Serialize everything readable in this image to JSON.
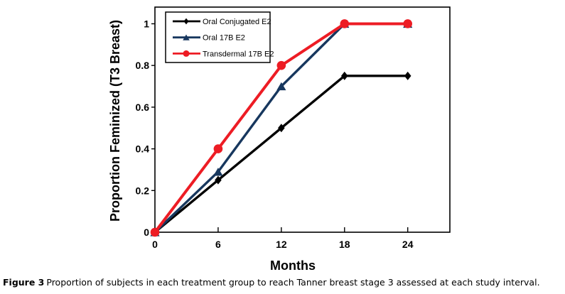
{
  "figure": {
    "caption_label": "Figure 3",
    "caption_text": "Proportion of subjects in each treatment group to reach Tanner breast stage 3 assessed at each study interval."
  },
  "chart_data": {
    "type": "line",
    "title": "",
    "xlabel": "Months",
    "ylabel": "Proportion Feminized (T3 Breast)",
    "x": [
      0,
      6,
      12,
      18,
      24
    ],
    "xticks": [
      0,
      6,
      12,
      18,
      24
    ],
    "xtick_labels": [
      "0",
      "6",
      "12",
      "18",
      "24"
    ],
    "yticks": [
      0,
      0.2,
      0.4,
      0.6,
      0.8,
      1
    ],
    "ytick_labels": [
      "0",
      "0.2",
      "0.4",
      "0.6",
      "0.8",
      "1"
    ],
    "xlim": [
      0,
      28
    ],
    "ylim": [
      0,
      1.08
    ],
    "grid": false,
    "legend_position": "top-left",
    "background": "#ffffff",
    "axis_color": "#000000",
    "series": [
      {
        "name": "Oral Conjugated E2",
        "color": "#000000",
        "marker": "diamond",
        "line_width": 3.4,
        "values": [
          0,
          0.25,
          0.5,
          0.75,
          0.75
        ]
      },
      {
        "name": "Oral 17B E2",
        "color": "#17375E",
        "marker": "triangle",
        "line_width": 3.4,
        "values": [
          0,
          0.29,
          0.7,
          1,
          1
        ]
      },
      {
        "name": "Transdermal 17B E2",
        "color": "#ED1C24",
        "marker": "circle",
        "line_width": 4,
        "values": [
          0,
          0.4,
          0.8,
          1,
          1
        ]
      }
    ]
  }
}
